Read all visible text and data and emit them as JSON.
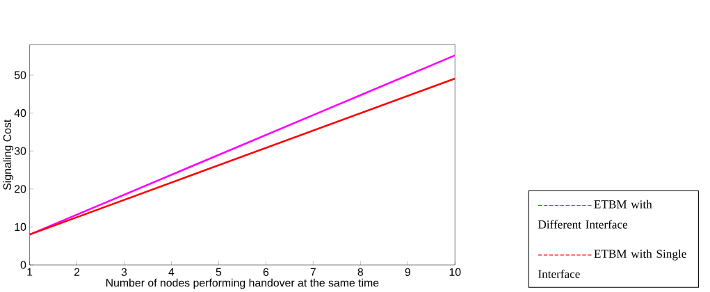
{
  "chart_data": {
    "type": "line",
    "xlabel": "Number of nodes performing handover at the same time",
    "ylabel": "Signaling Cost",
    "x": [
      1,
      10
    ],
    "series": [
      {
        "name": "ETBM with Different Interface",
        "color": "#ff00ff",
        "values": [
          8,
          55.2
        ]
      },
      {
        "name": "ETBM with Single Interface",
        "color": "#ff0000",
        "values": [
          8,
          49.1
        ]
      }
    ],
    "xlim": [
      1,
      10
    ],
    "ylim": [
      0,
      58
    ],
    "xticks": [
      1,
      2,
      3,
      4,
      5,
      6,
      7,
      8,
      9,
      10
    ],
    "yticks": [
      0,
      10,
      20,
      30,
      40,
      50
    ],
    "grid": false,
    "legend": "bottom right",
    "marker": "none",
    "line_style": "solid"
  }
}
